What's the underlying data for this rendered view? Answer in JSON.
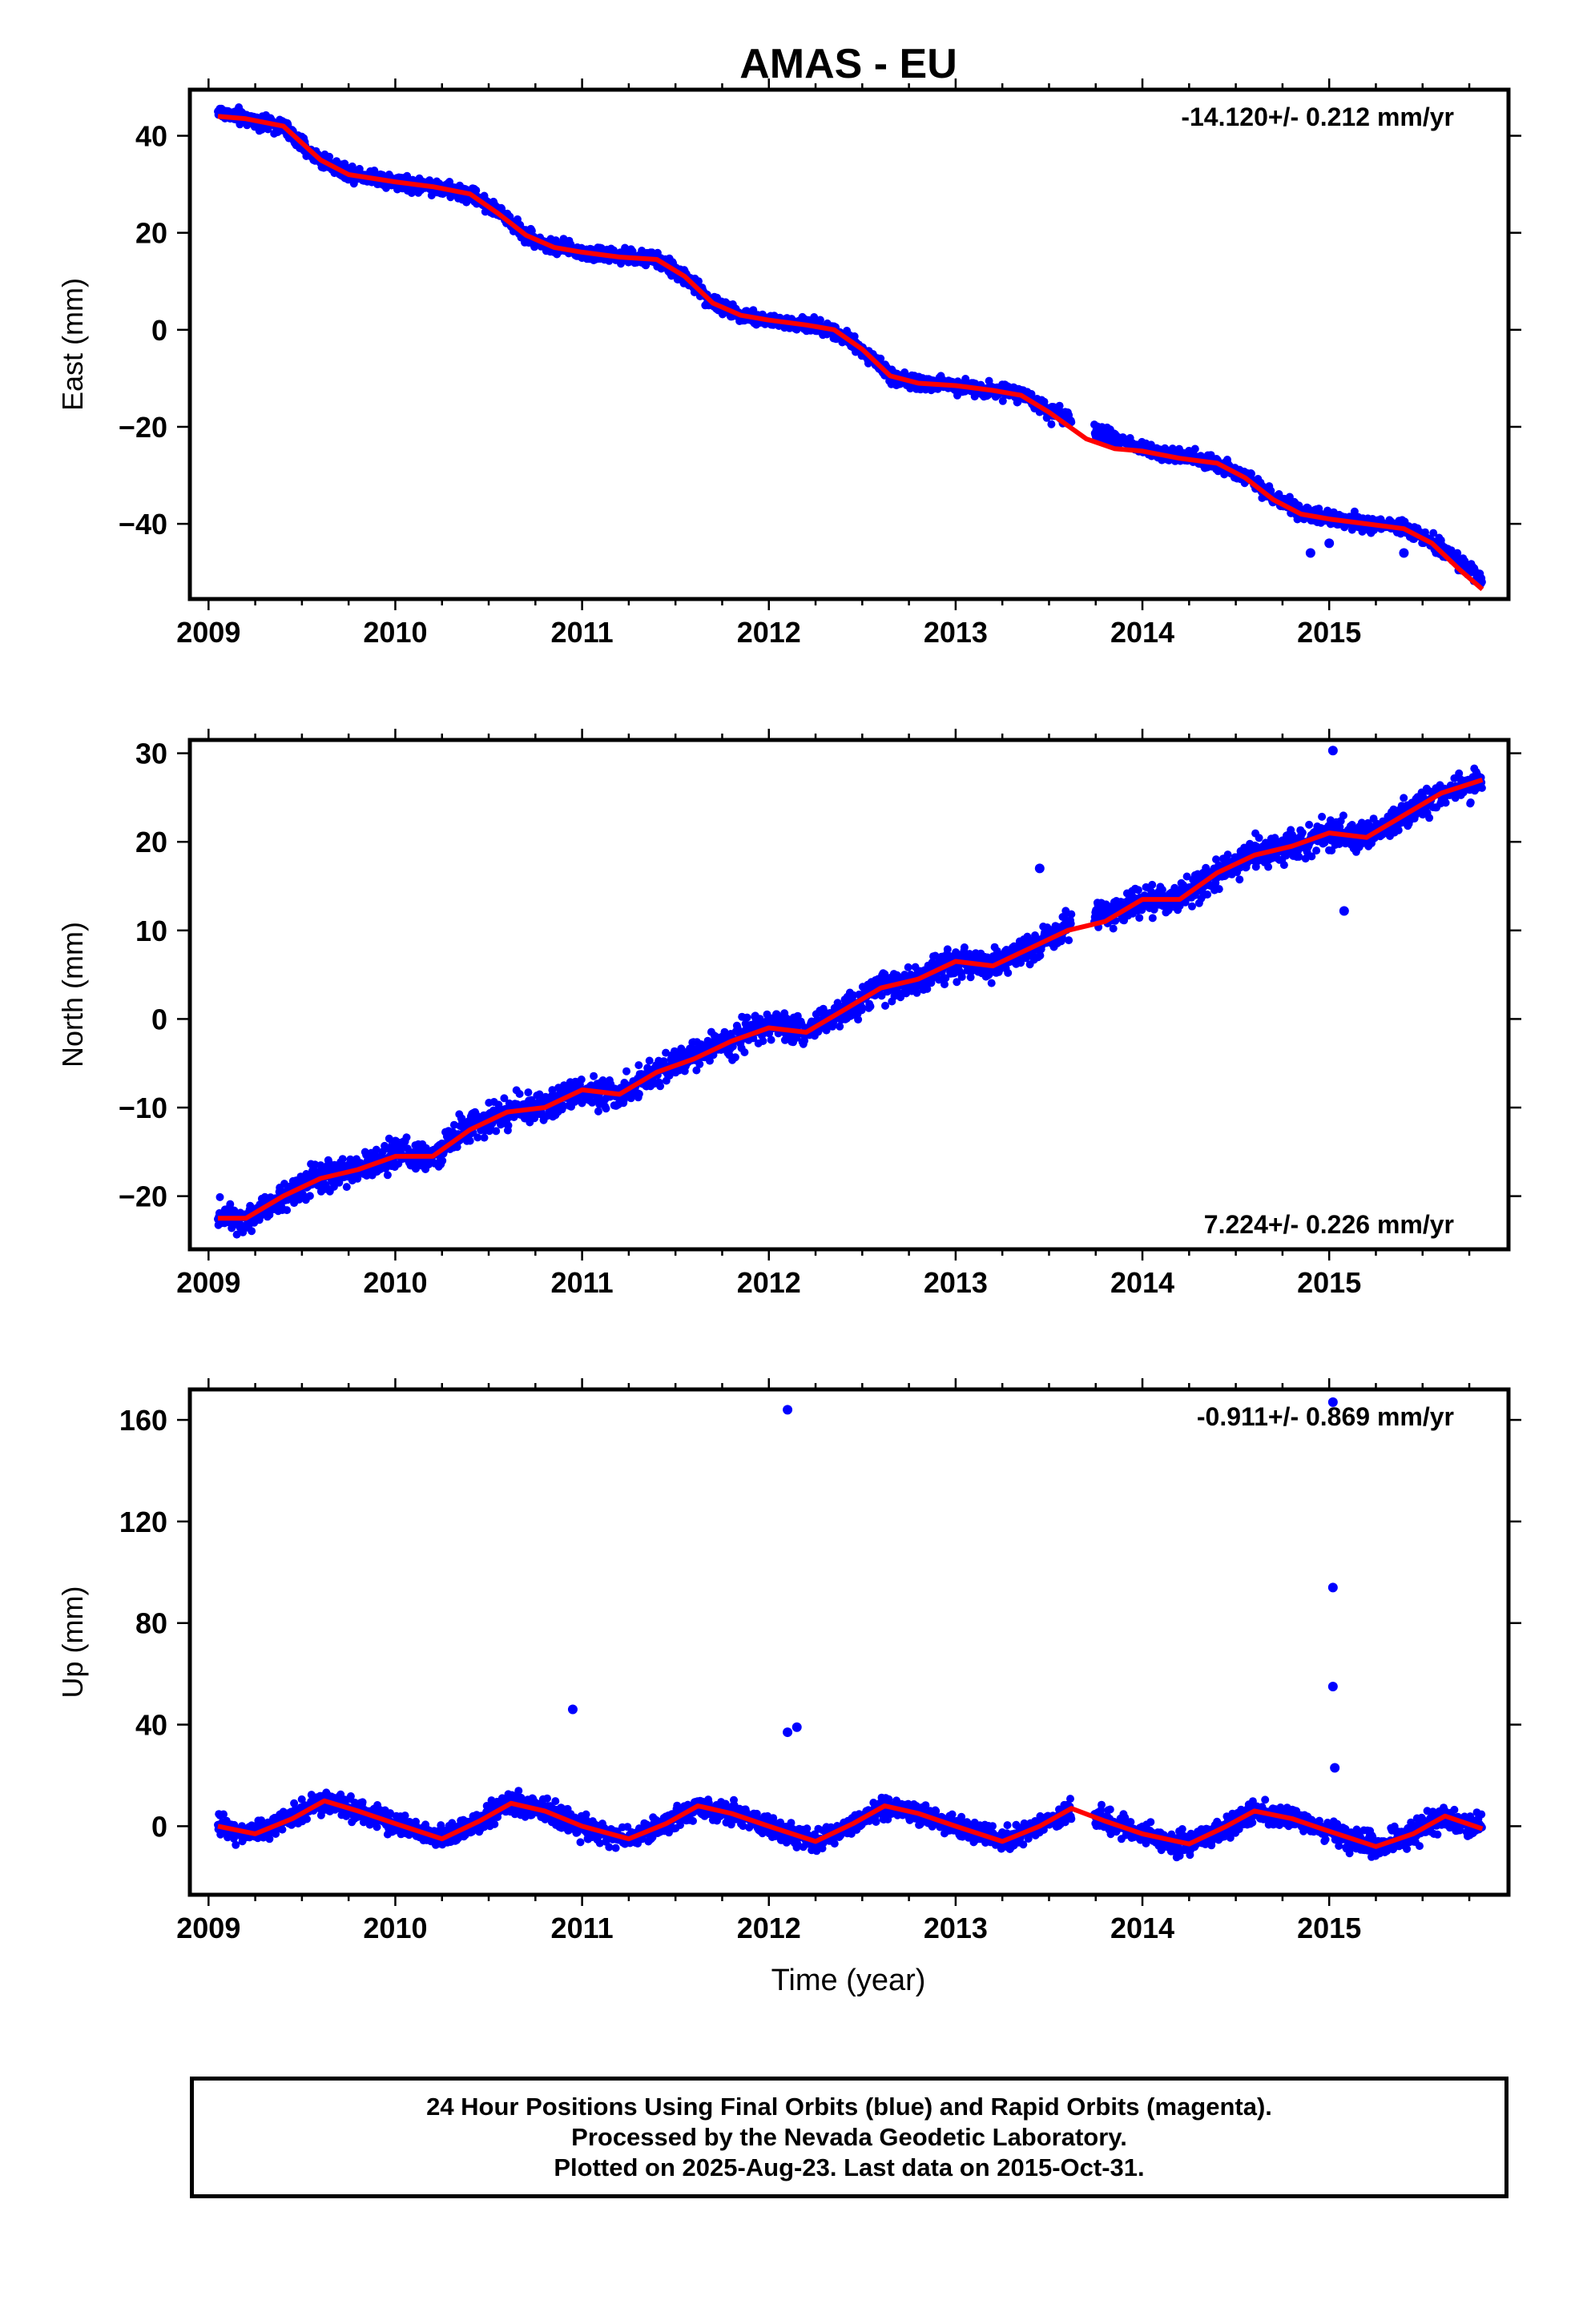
{
  "title": "AMAS - EU",
  "xlabel": "Time (year)",
  "caption": {
    "line1": "24 Hour Positions Using Final Orbits (blue) and Rapid Orbits (magenta).",
    "line2": "Processed by the Nevada Geodetic Laboratory.",
    "line3": "Plotted on 2025-Aug-23. Last data on 2015-Oct-31."
  },
  "colors": {
    "points": "#0000ff",
    "fit": "#ff0000",
    "axes": "#000000"
  },
  "chart_data": [
    {
      "type": "scatter",
      "ylabel": "East (mm)",
      "rate_label": "-14.120+/- 0.212 mm/yr",
      "xlim": [
        2008.9,
        2015.96
      ],
      "ylim": [
        -55.5,
        49.5
      ],
      "x_ticks": [
        2009,
        2010,
        2011,
        2012,
        2013,
        2014,
        2015
      ],
      "y_ticks": [
        40,
        20,
        0,
        -20,
        -40
      ],
      "y_tick_labels": [
        "40",
        "20",
        "0",
        "−20",
        "−40"
      ],
      "series": [
        {
          "label": "Final Orbits (blue)",
          "x": [
            2009.05,
            2009.2,
            2009.4,
            2009.5,
            2009.6,
            2009.75,
            2010.0,
            2010.2,
            2010.4,
            2010.55,
            2010.7,
            2010.85,
            2011.0,
            2011.2,
            2011.4,
            2011.55,
            2011.7,
            2011.85,
            2012.0,
            2012.2,
            2012.35,
            2012.5,
            2012.65,
            2012.8,
            2013.0,
            2013.2,
            2013.35,
            2013.5,
            2014.0,
            2014.2,
            2014.4,
            2014.55,
            2014.7,
            2014.85,
            2015.0,
            2015.2,
            2015.4,
            2015.55,
            2015.7,
            2015.82
          ],
          "y": [
            45,
            43.5,
            42,
            38,
            35,
            32.5,
            30.5,
            29.5,
            28,
            24.5,
            19.5,
            17,
            16,
            15,
            14.5,
            11,
            5.5,
            3,
            2,
            1,
            0,
            -4,
            -9.5,
            -11,
            -11.5,
            -12.5,
            -13,
            -17,
            -24.5,
            -26,
            -27.5,
            -30,
            -34.5,
            -38,
            -39,
            -40,
            -41,
            -43.5,
            -48,
            -51.5
          ]
        },
        {
          "label": "fit",
          "x": [
            2009.05,
            2009.2,
            2009.4,
            2009.5,
            2009.6,
            2009.75,
            2010.0,
            2010.2,
            2010.4,
            2010.55,
            2010.7,
            2010.85,
            2011.0,
            2011.2,
            2011.4,
            2011.55,
            2011.7,
            2011.85,
            2012.0,
            2012.2,
            2012.35,
            2012.5,
            2012.65,
            2012.8,
            2013.0,
            2013.2,
            2013.35,
            2013.5,
            2013.7,
            2013.85,
            2014.0,
            2014.2,
            2014.4,
            2014.55,
            2014.7,
            2014.85,
            2015.0,
            2015.2,
            2015.4,
            2015.55,
            2015.7,
            2015.82
          ],
          "y": [
            44,
            43.5,
            42,
            38.5,
            35,
            32,
            30.5,
            29.5,
            28,
            24,
            19.5,
            17,
            16,
            15,
            14.5,
            11,
            5.5,
            3,
            2,
            1,
            0,
            -4,
            -9.5,
            -11,
            -11.5,
            -12.5,
            -13.5,
            -17,
            -22.5,
            -24.5,
            -25,
            -26.5,
            -27.5,
            -30.5,
            -35,
            -38,
            -39,
            -40,
            -41,
            -44,
            -49.5,
            -53.5
          ]
        }
      ],
      "outliers": {
        "x": [
          2014.9,
          2015.4,
          2015.0
        ],
        "y": [
          -46,
          -46,
          -44
        ]
      }
    },
    {
      "type": "scatter",
      "ylabel": "North (mm)",
      "rate_label": "7.224+/- 0.226 mm/yr",
      "xlim": [
        2008.9,
        2015.96
      ],
      "ylim": [
        -26,
        31.5
      ],
      "x_ticks": [
        2009,
        2010,
        2011,
        2012,
        2013,
        2014,
        2015
      ],
      "y_ticks": [
        30,
        20,
        10,
        0,
        -10,
        -20
      ],
      "y_tick_labels": [
        "30",
        "20",
        "10",
        "0",
        "−10",
        "−20"
      ],
      "series": [
        {
          "label": "Final Orbits (blue)",
          "x": [
            2009.05,
            2009.2,
            2009.4,
            2009.6,
            2009.8,
            2010.0,
            2010.2,
            2010.4,
            2010.6,
            2010.8,
            2011.0,
            2011.2,
            2011.4,
            2011.6,
            2011.8,
            2012.0,
            2012.2,
            2012.4,
            2012.6,
            2012.8,
            2013.0,
            2013.2,
            2013.4,
            2013.6,
            2014.0,
            2014.2,
            2014.4,
            2014.6,
            2014.8,
            2015.0,
            2015.2,
            2015.4,
            2015.6,
            2015.82
          ],
          "y": [
            -22,
            -22.5,
            -20,
            -18,
            -17,
            -15,
            -15.5,
            -12,
            -10.5,
            -10,
            -8,
            -8.5,
            -6,
            -4,
            -2.5,
            -0.5,
            -1.5,
            1,
            3.5,
            4.5,
            6.5,
            6,
            8,
            10.5,
            13.5,
            13.5,
            16.5,
            18.5,
            19.5,
            21,
            20.5,
            23,
            25.5,
            27
          ]
        },
        {
          "label": "fit",
          "x": [
            2009.05,
            2009.2,
            2009.4,
            2009.6,
            2009.8,
            2010.0,
            2010.2,
            2010.4,
            2010.6,
            2010.8,
            2011.0,
            2011.2,
            2011.4,
            2011.6,
            2011.8,
            2012.0,
            2012.2,
            2012.4,
            2012.6,
            2012.8,
            2013.0,
            2013.2,
            2013.4,
            2013.6,
            2013.8,
            2014.0,
            2014.2,
            2014.4,
            2014.6,
            2014.8,
            2015.0,
            2015.2,
            2015.4,
            2015.6,
            2015.82
          ],
          "y": [
            -22.5,
            -22.5,
            -20,
            -18,
            -17,
            -15.5,
            -15.5,
            -12.5,
            -10.5,
            -10,
            -8,
            -8.5,
            -6,
            -4.5,
            -2.5,
            -1,
            -1.5,
            1,
            3.5,
            4.5,
            6.5,
            6,
            8,
            10,
            11,
            13.5,
            13.5,
            16.5,
            18.5,
            19.5,
            21,
            20.5,
            23,
            25.5,
            27
          ]
        }
      ],
      "outliers": {
        "x": [
          2015.02,
          2013.45,
          2015.08
        ],
        "y": [
          30.3,
          17,
          12.2
        ]
      }
    },
    {
      "type": "scatter",
      "ylabel": "Up (mm)",
      "rate_label": "-0.911+/- 0.869 mm/yr",
      "xlim": [
        2008.9,
        2015.96
      ],
      "ylim": [
        -27,
        172
      ],
      "x_ticks": [
        2009,
        2010,
        2011,
        2012,
        2013,
        2014,
        2015
      ],
      "y_ticks": [
        160,
        120,
        80,
        40,
        0
      ],
      "y_tick_labels": [
        "160",
        "120",
        "80",
        "40",
        "0"
      ],
      "series": [
        {
          "label": "Final Orbits (blue)",
          "x": [
            2009.05,
            2009.25,
            2009.45,
            2009.62,
            2009.8,
            2010.0,
            2010.25,
            2010.45,
            2010.62,
            2010.8,
            2011.0,
            2011.25,
            2011.45,
            2011.62,
            2011.8,
            2012.0,
            2012.25,
            2012.45,
            2012.62,
            2012.8,
            2013.0,
            2013.25,
            2013.45,
            2013.62,
            2013.8,
            2014.0,
            2014.25,
            2014.45,
            2014.6,
            2014.8,
            2015.0,
            2015.25,
            2015.45,
            2015.62,
            2015.82
          ],
          "y": [
            0,
            -3,
            4,
            10,
            6,
            1,
            -5,
            2,
            9,
            6,
            0,
            -5,
            1,
            8,
            5,
            0,
            -6,
            1,
            8,
            5,
            0,
            -6,
            0,
            7,
            2,
            -3,
            -7,
            0,
            6,
            3,
            -2,
            -8,
            -3,
            4,
            -1
          ]
        },
        {
          "label": "fit",
          "x": [
            2009.05,
            2009.25,
            2009.45,
            2009.62,
            2009.8,
            2010.0,
            2010.25,
            2010.45,
            2010.62,
            2010.8,
            2011.0,
            2011.25,
            2011.45,
            2011.62,
            2011.8,
            2012.0,
            2012.25,
            2012.45,
            2012.62,
            2012.8,
            2013.0,
            2013.25,
            2013.45,
            2013.62,
            2013.8,
            2014.0,
            2014.25,
            2014.45,
            2014.6,
            2014.8,
            2015.0,
            2015.25,
            2015.45,
            2015.62,
            2015.82
          ],
          "y": [
            0,
            -3,
            3,
            10,
            6,
            1,
            -5,
            2,
            9,
            6,
            0,
            -5,
            1,
            8,
            5,
            0,
            -6,
            1,
            8,
            5,
            0,
            -6,
            0,
            7,
            2,
            -3,
            -7,
            0,
            6,
            3,
            -2,
            -8,
            -3,
            4,
            -1
          ]
        }
      ],
      "outliers": {
        "x": [
          2012.1,
          2015.02,
          2015.02,
          2015.02,
          2010.95,
          2012.15,
          2012.1,
          2015.03
        ],
        "y": [
          164,
          167,
          94,
          55,
          46,
          39,
          37,
          23
        ]
      }
    }
  ]
}
